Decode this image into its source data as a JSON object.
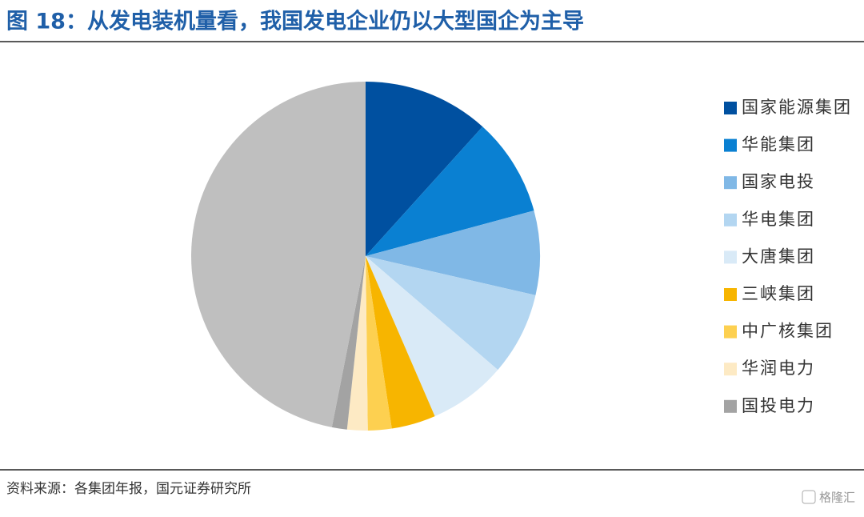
{
  "chart_data": {
    "type": "pie",
    "title": "图 18：从发电装机量看，我国发电企业仍以大型国企为主导",
    "categories": [
      "国家能源集团",
      "华能集团",
      "国家电投",
      "华电集团",
      "大唐集团",
      "三峡集团",
      "中广核集团",
      "华润电力",
      "国投电力",
      null
    ],
    "values": [
      11.7,
      9.1,
      7.8,
      7.7,
      7.2,
      4.1,
      2.2,
      1.9,
      1.4,
      46.9
    ],
    "colors": [
      "#0050a0",
      "#0a80d2",
      "#80b8e6",
      "#b3d6f1",
      "#d9eaf7",
      "#f7b500",
      "#fdd050",
      "#fdeac4",
      "#a3a3a3",
      "#bfbfbf"
    ],
    "legend_position": "right",
    "source": "资料来源：各集团年报，国元证券研究所",
    "watermark": "格隆汇"
  }
}
